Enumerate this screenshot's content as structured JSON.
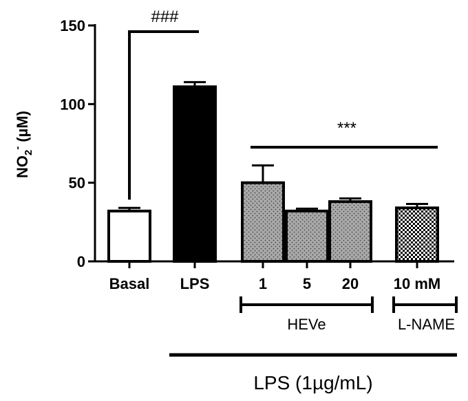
{
  "chart_data": {
    "type": "bar",
    "ylabel": "NO2- (µM)",
    "ylabel_parts": {
      "main": "NO",
      "sub": "2",
      "sup": "-",
      "unit": "(µM)"
    },
    "ylim": [
      0,
      150
    ],
    "yticks": [
      "0",
      "50",
      "100",
      "150"
    ],
    "grid": false,
    "legend": "none",
    "categories": [
      "Basal",
      "LPS",
      "1",
      "5",
      "20",
      "10 mM"
    ],
    "values": [
      32,
      111,
      50,
      32,
      38,
      34
    ],
    "errors": [
      2,
      3,
      11,
      1.5,
      2,
      2.5
    ],
    "fills": [
      "white",
      "black",
      "dots",
      "dots",
      "dots",
      "checker"
    ],
    "groups": [
      {
        "label": "HEVe",
        "members": [
          "1",
          "5",
          "20"
        ]
      },
      {
        "label": "L-NAME",
        "members": [
          "10 mM"
        ]
      }
    ],
    "condition": {
      "label": "LPS (1µg/mL)",
      "members": [
        "LPS",
        "1",
        "5",
        "20",
        "10 mM"
      ]
    },
    "annotations": [
      {
        "text": "###",
        "from": "Basal",
        "to": "LPS"
      },
      {
        "text": "***",
        "from": "1",
        "to": "10 mM"
      }
    ]
  },
  "colors": {
    "stroke": "#000000",
    "dots_fill": "#a9a9a9",
    "background": "#ffffff"
  }
}
